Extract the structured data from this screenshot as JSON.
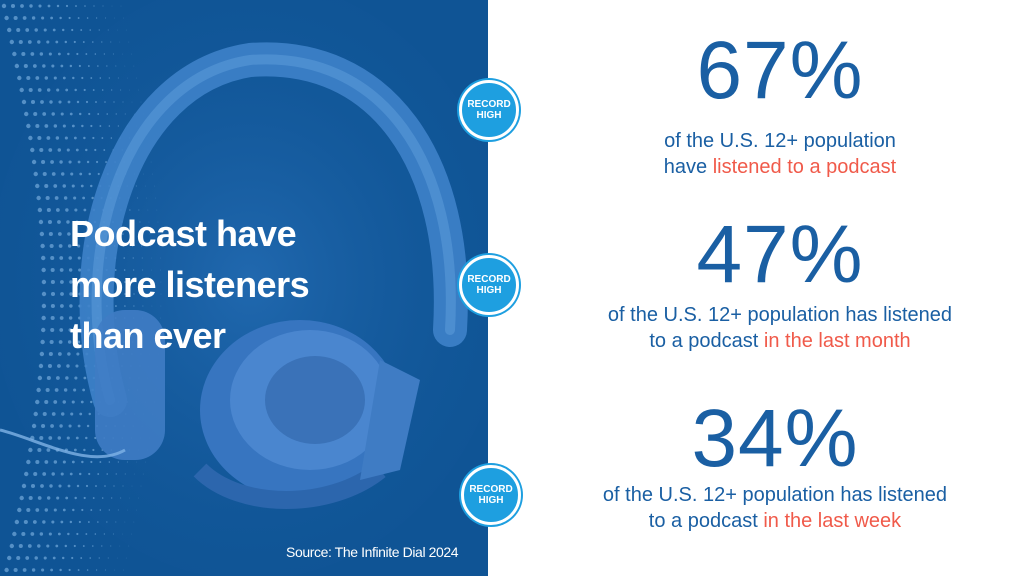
{
  "headline": {
    "line1": "Podcast have",
    "line2": "more listeners",
    "line3": "than ever"
  },
  "source": "Source: The Infinite Dial 2024",
  "badges": [
    {
      "line1": "RECORD",
      "line2": "HIGH"
    },
    {
      "line1": "RECORD",
      "line2": "HIGH"
    },
    {
      "line1": "RECORD",
      "line2": "HIGH"
    }
  ],
  "stats": [
    {
      "value": "67%",
      "line1": "of the U.S. 12+ population",
      "line2_prefix": "have ",
      "line2_highlight": "listened to a podcast",
      "line2_suffix": ""
    },
    {
      "value": "47%",
      "line1": "of the U.S. 12+ population has listened",
      "line2_prefix": "to a podcast ",
      "line2_highlight": "in the last month",
      "line2_suffix": ""
    },
    {
      "value": "34%",
      "line1": "of the U.S. 12+ population has listened",
      "line2_prefix": "to a podcast ",
      "line2_highlight": "in the last week",
      "line2_suffix": ""
    }
  ],
  "colors": {
    "panel": "#0f5495",
    "stat_text": "#1a5fa3",
    "highlight": "#f05a4a",
    "badge": "#1e9fe0"
  },
  "icons": [
    "headphones-image",
    "dot-pattern"
  ]
}
